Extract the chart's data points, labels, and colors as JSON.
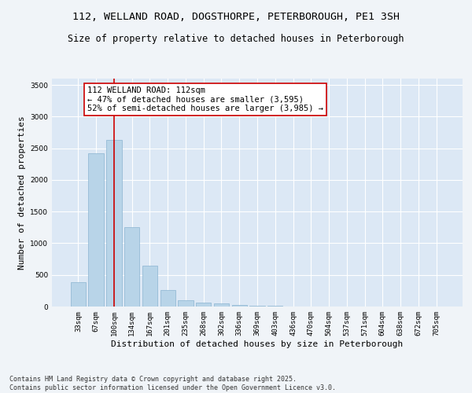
{
  "title1": "112, WELLAND ROAD, DOGSTHORPE, PETERBOROUGH, PE1 3SH",
  "title2": "Size of property relative to detached houses in Peterborough",
  "xlabel": "Distribution of detached houses by size in Peterborough",
  "ylabel": "Number of detached properties",
  "categories": [
    "33sqm",
    "67sqm",
    "100sqm",
    "134sqm",
    "167sqm",
    "201sqm",
    "235sqm",
    "268sqm",
    "302sqm",
    "336sqm",
    "369sqm",
    "403sqm",
    "436sqm",
    "470sqm",
    "504sqm",
    "537sqm",
    "571sqm",
    "604sqm",
    "638sqm",
    "672sqm",
    "705sqm"
  ],
  "values": [
    390,
    2420,
    2630,
    1260,
    640,
    260,
    105,
    60,
    45,
    25,
    15,
    10,
    0,
    0,
    0,
    0,
    0,
    0,
    0,
    0,
    0
  ],
  "bar_color": "#b8d4e8",
  "bar_edge_color": "#8ab4d0",
  "vline_x": 2,
  "vline_color": "#cc0000",
  "annotation_text": "112 WELLAND ROAD: 112sqm\n← 47% of detached houses are smaller (3,595)\n52% of semi-detached houses are larger (3,985) →",
  "box_color": "#ffffff",
  "box_edge_color": "#cc0000",
  "ylim": [
    0,
    3600
  ],
  "yticks": [
    0,
    500,
    1000,
    1500,
    2000,
    2500,
    3000,
    3500
  ],
  "bg_color": "#dce8f5",
  "grid_color": "#ffffff",
  "footer_text": "Contains HM Land Registry data © Crown copyright and database right 2025.\nContains public sector information licensed under the Open Government Licence v3.0.",
  "fig_bg_color": "#f0f4f8",
  "title_fontsize": 9.5,
  "subtitle_fontsize": 8.5,
  "axis_label_fontsize": 8,
  "tick_fontsize": 6.5,
  "annotation_fontsize": 7.5,
  "footer_fontsize": 6
}
